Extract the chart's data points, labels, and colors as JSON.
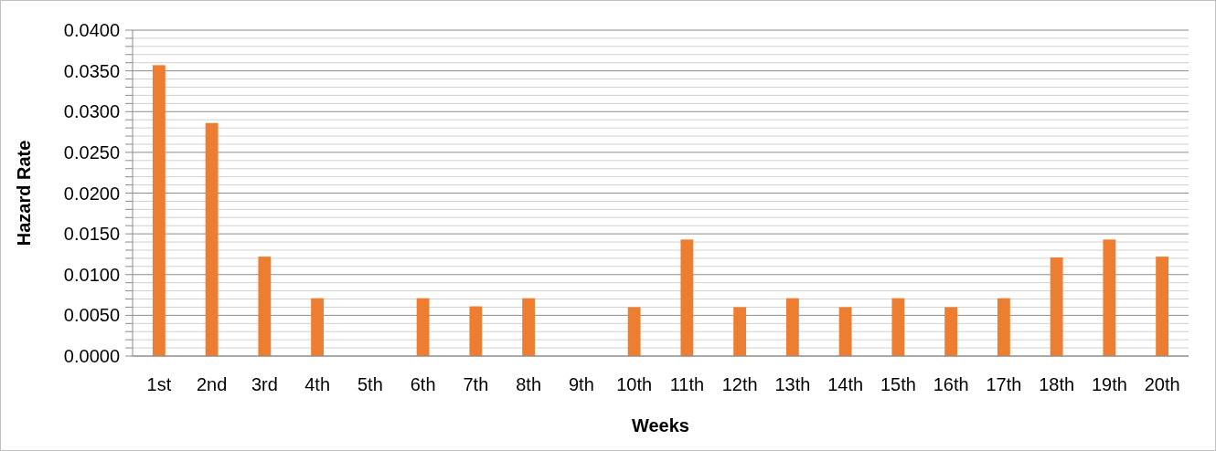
{
  "chart_data": {
    "type": "bar",
    "xlabel": "Weeks",
    "ylabel": "Hazard Rate",
    "categories": [
      "1st",
      "2nd",
      "3rd",
      "4th",
      "5th",
      "6th",
      "7th",
      "8th",
      "9th",
      "10th",
      "11th",
      "12th",
      "13th",
      "14th",
      "15th",
      "16th",
      "17th",
      "18th",
      "19th",
      "20th"
    ],
    "values": [
      0.0357,
      0.0286,
      0.0122,
      0.0071,
      0,
      0.0071,
      0.0061,
      0.0071,
      0,
      0.006,
      0.0143,
      0.006,
      0.0071,
      0.006,
      0.0071,
      0.006,
      0.0071,
      0.0121,
      0.0143,
      0.0122
    ],
    "color": "#ed7d31",
    "ylim": [
      0,
      0.04
    ],
    "yticks": [
      {
        "value": 0,
        "label": "0.0000"
      },
      {
        "value": 0.001,
        "label": null
      },
      {
        "value": 0.002,
        "label": null
      },
      {
        "value": 0.003,
        "label": null
      },
      {
        "value": 0.004,
        "label": null
      },
      {
        "value": 0.005,
        "label": "0.0050"
      },
      {
        "value": 0.006,
        "label": null
      },
      {
        "value": 0.007,
        "label": null
      },
      {
        "value": 0.008,
        "label": null
      },
      {
        "value": 0.009,
        "label": null
      },
      {
        "value": 0.01,
        "label": "0.0100"
      },
      {
        "value": 0.011,
        "label": null
      },
      {
        "value": 0.012,
        "label": null
      },
      {
        "value": 0.013,
        "label": null
      },
      {
        "value": 0.014,
        "label": null
      },
      {
        "value": 0.015,
        "label": "0.0150"
      },
      {
        "value": 0.016,
        "label": null
      },
      {
        "value": 0.017,
        "label": null
      },
      {
        "value": 0.018,
        "label": null
      },
      {
        "value": 0.019,
        "label": null
      },
      {
        "value": 0.02,
        "label": "0.0200"
      },
      {
        "value": 0.021,
        "label": null
      },
      {
        "value": 0.022,
        "label": null
      },
      {
        "value": 0.023,
        "label": null
      },
      {
        "value": 0.024,
        "label": null
      },
      {
        "value": 0.025,
        "label": "0.0250"
      },
      {
        "value": 0.026,
        "label": null
      },
      {
        "value": 0.027,
        "label": null
      },
      {
        "value": 0.028,
        "label": null
      },
      {
        "value": 0.029,
        "label": null
      },
      {
        "value": 0.03,
        "label": "0.0300"
      },
      {
        "value": 0.031,
        "label": null
      },
      {
        "value": 0.032,
        "label": null
      },
      {
        "value": 0.033,
        "label": null
      },
      {
        "value": 0.034,
        "label": null
      },
      {
        "value": 0.035,
        "label": "0.0350"
      },
      {
        "value": 0.036,
        "label": null
      },
      {
        "value": 0.037,
        "label": null
      },
      {
        "value": 0.038,
        "label": null
      },
      {
        "value": 0.039,
        "label": null
      },
      {
        "value": 0.04,
        "label": "0.0400"
      }
    ],
    "grid": true
  }
}
